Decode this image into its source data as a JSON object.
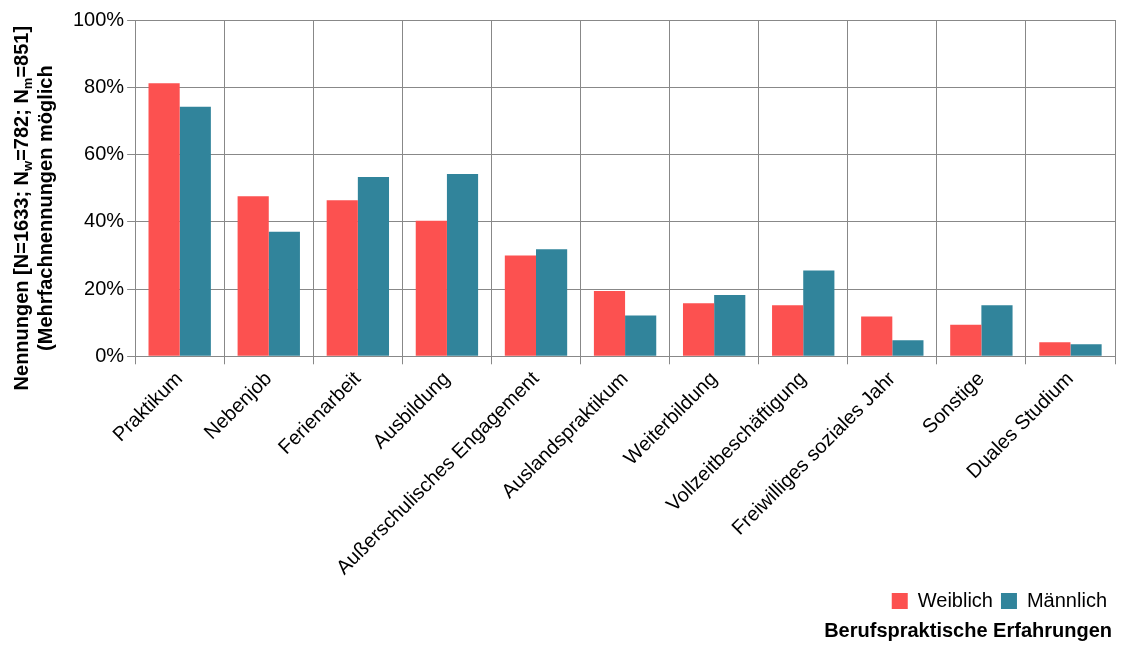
{
  "chart_data": {
    "type": "bar",
    "xlabel": "Berufspraktische Erfahrungen",
    "ylabel": "Nennungen [N=1633; N$_{w}$=782; N$_{m}$=851]\n(Mehrfachnennungen möglich",
    "categories": [
      "Praktikum",
      "Nebenjob",
      "Ferienarbeit",
      "Ausbildung",
      "Außerschulisches Engagement",
      "Auslandspraktikum",
      "Weiterbildung",
      "Vollzeitbeschäftigung",
      "Freiwilliges soziales Jahr",
      "Sonstige",
      "Duales Studium"
    ],
    "series": [
      {
        "name": "Weiblich",
        "color": "#fc5150",
        "values": [
          81.2,
          47.6,
          46.4,
          40.3,
          30,
          19.4,
          15.8,
          15.2,
          11.8,
          9.4,
          4.2
        ]
      },
      {
        "name": "Männlich",
        "color": "#31849b",
        "values": [
          74.2,
          37,
          53.3,
          54.2,
          31.8,
          12.1,
          18.2,
          25.5,
          4.8,
          15.2,
          3.6
        ]
      }
    ],
    "ylim": [
      0,
      100
    ],
    "yticks": [
      {
        "value": 0,
        "label": "0%"
      },
      {
        "value": 20,
        "label": "20%"
      },
      {
        "value": 40,
        "label": "40%"
      },
      {
        "value": 60,
        "label": "60%"
      },
      {
        "value": 80,
        "label": "80%"
      },
      {
        "value": 100,
        "label": "100%"
      }
    ],
    "grid": true,
    "legend": "bottom right"
  }
}
